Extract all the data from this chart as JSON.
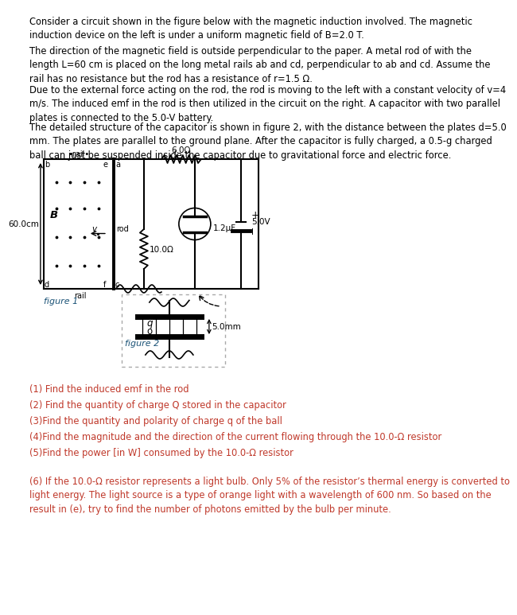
{
  "bg_color": "#ffffff",
  "text_color": "#000000",
  "blue_color": "#1a5276",
  "orange_color": "#c0392b",
  "fig_width": 5.97,
  "fig_height": 7.54,
  "para1": "Consider a circuit shown in the figure below with the magnetic induction involved. The magnetic\ninduction device on the left is under a uniform magnetic field of B=2.0 T.",
  "para2": "The direction of the magnetic field is outside perpendicular to the paper. A metal rod of with the\nlength L=60 cm is placed on the long metal rails ab and cd, perpendicular to ab and cd. Assume the\nrail has no resistance but the rod has a resistance of r=1.5 Ω.",
  "para3": "Due to the external force acting on the rod, the rod is moving to the left with a constant velocity of v=4\nm/s. The induced emf in the rod is then utilized in the circuit on the right. A capacitor with two parallel\nplates is connected to the 5.0-V battery.",
  "para4": "The detailed structure of the capacitor is shown in figure 2, with the distance between the plates d=5.0\nmm. The plates are parallel to the ground plane. After the capacitor is fully charged, a 0.5-g charged\nball can just be suspended inside the capacitor due to gravitational force and electric force.",
  "q1": "(1) Find the induced emf in the rod",
  "q2": "(2) Find the quantity of charge Q stored in the capacitor",
  "q3": "(3)Find the quantity and polarity of charge q of the ball",
  "q4": "(4)Find the magnitude and the direction of the current flowing through the 10.0-Ω resistor",
  "q5": "(5)Find the power [in W] consumed by the 10.0-Ω resistor",
  "q6": "(6) If the 10.0-Ω resistor represents a light bulb. Only 5% of the resistor’s thermal energy is converted to\nlight energy. The light source is a type of orange light with a wavelength of 600 nm. So based on the\nresult in (e), try to find the number of photons emitted by the bulb per minute."
}
